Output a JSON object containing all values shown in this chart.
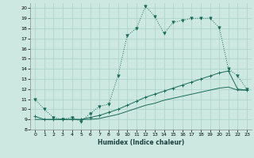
{
  "xlabel": "Humidex (Indice chaleur)",
  "bg_color": "#cce8e0",
  "grid_color": "#aad0c8",
  "line_color": "#1a6b5a",
  "xlim": [
    -0.5,
    23.5
  ],
  "ylim": [
    8,
    20.5
  ],
  "xticks": [
    0,
    1,
    2,
    3,
    4,
    5,
    6,
    7,
    8,
    9,
    10,
    11,
    12,
    13,
    14,
    15,
    16,
    17,
    18,
    19,
    20,
    21,
    22,
    23
  ],
  "yticks": [
    8,
    9,
    10,
    11,
    12,
    13,
    14,
    15,
    16,
    17,
    18,
    19,
    20
  ],
  "line1_x": [
    0,
    1,
    2,
    3,
    4,
    5,
    6,
    7,
    8,
    9,
    10,
    11,
    12,
    13,
    14,
    15,
    16,
    17,
    18,
    19,
    20,
    21,
    22,
    23
  ],
  "line1_y": [
    11.0,
    10.0,
    9.2,
    9.0,
    9.2,
    8.8,
    9.6,
    10.3,
    10.5,
    13.3,
    17.3,
    18.0,
    20.2,
    19.2,
    17.5,
    18.6,
    18.8,
    19.0,
    19.0,
    19.0,
    18.1,
    14.0,
    13.3,
    12.0
  ],
  "line2_x": [
    0,
    1,
    2,
    3,
    4,
    5,
    6,
    7,
    8,
    9,
    10,
    11,
    12,
    13,
    14,
    15,
    16,
    17,
    18,
    19,
    20,
    21,
    22,
    23
  ],
  "line2_y": [
    9.3,
    9.0,
    9.0,
    9.0,
    9.0,
    9.0,
    9.2,
    9.4,
    9.7,
    10.0,
    10.4,
    10.8,
    11.2,
    11.5,
    11.8,
    12.1,
    12.4,
    12.7,
    13.0,
    13.3,
    13.6,
    13.8,
    12.0,
    11.9
  ],
  "line3_x": [
    0,
    1,
    2,
    3,
    4,
    5,
    6,
    7,
    8,
    9,
    10,
    11,
    12,
    13,
    14,
    15,
    16,
    17,
    18,
    19,
    20,
    21,
    22,
    23
  ],
  "line3_y": [
    9.0,
    9.0,
    9.0,
    9.0,
    9.0,
    9.0,
    9.0,
    9.1,
    9.3,
    9.5,
    9.8,
    10.1,
    10.4,
    10.6,
    10.9,
    11.1,
    11.3,
    11.5,
    11.7,
    11.9,
    12.1,
    12.2,
    11.9,
    11.9
  ]
}
